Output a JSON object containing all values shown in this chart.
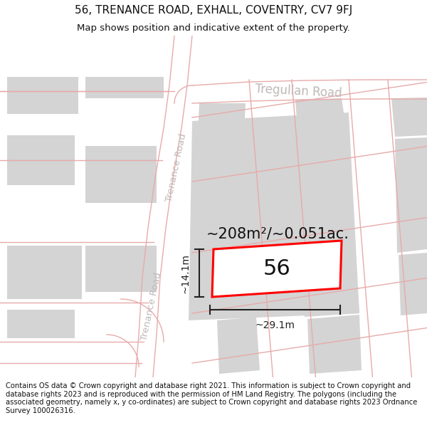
{
  "title_line1": "56, TRENANCE ROAD, EXHALL, COVENTRY, CV7 9FJ",
  "title_line2": "Map shows position and indicative extent of the property.",
  "footer_text": "Contains OS data © Crown copyright and database right 2021. This information is subject to Crown copyright and database rights 2023 and is reproduced with the permission of HM Land Registry. The polygons (including the associated geometry, namely x, y co-ordinates) are subject to Crown copyright and database rights 2023 Ordnance Survey 100026316.",
  "area_label": "~208m²/~0.051ac.",
  "number_label": "56",
  "width_label": "~29.1m",
  "height_label": "~14.1m",
  "road_label_upper": "Trenance Road",
  "road_label_lower": "Trenance Road",
  "road_label_top": "Tregullan Road",
  "bg_color": "#ffffff",
  "map_bg": "#f7f4f4",
  "block_color": "#d4d4d4",
  "road_line_color": "#e8aaaa",
  "property_outline_color": "#ff0000",
  "dim_line_color": "#222222",
  "text_color": "#111111",
  "road_text_color": "#c0b8b8",
  "title_fontsize": 11,
  "subtitle_fontsize": 9.5,
  "footer_fontsize": 7.2,
  "area_fontsize": 15,
  "number_fontsize": 22,
  "dim_fontsize": 10,
  "road_fontsize": 9.5
}
